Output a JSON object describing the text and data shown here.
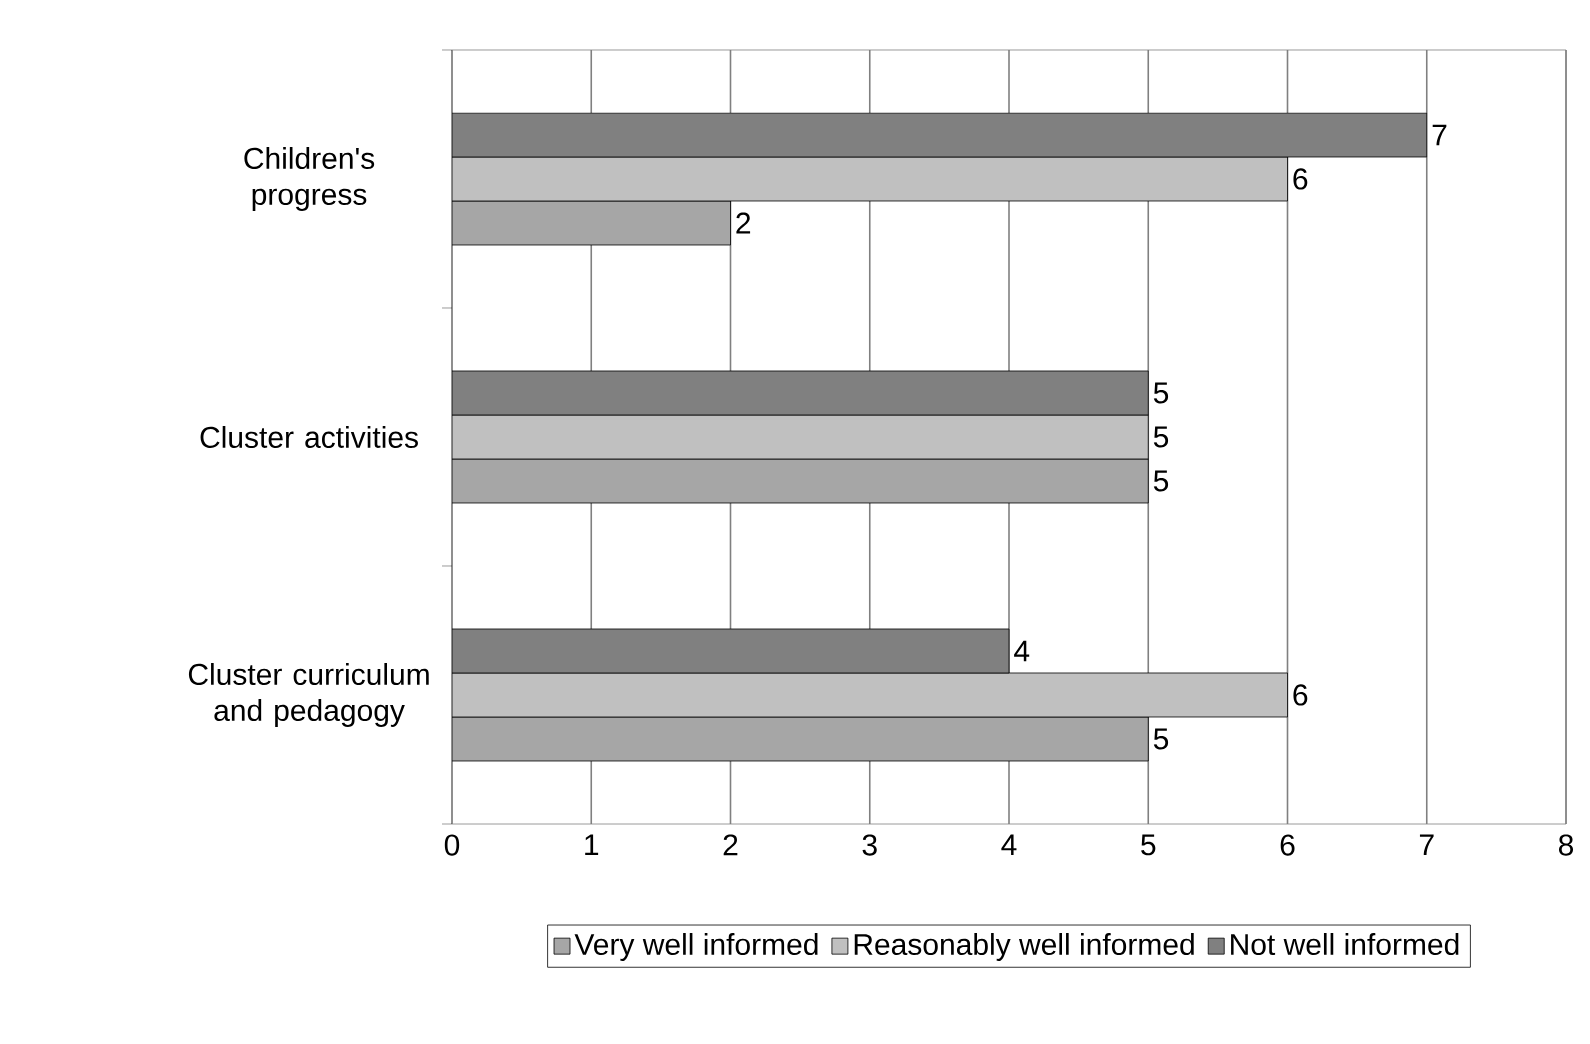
{
  "chart_data": {
    "type": "bar",
    "orientation": "horizontal",
    "categories": [
      "Children's progress",
      "Cluster activities",
      "Cluster curriculum and pedagogy"
    ],
    "series": [
      {
        "name": "Very well informed",
        "color": "#a6a6a6",
        "values": [
          2,
          5,
          5
        ]
      },
      {
        "name": "Reasonably well informed",
        "color": "#c0c0c0",
        "values": [
          6,
          5,
          6
        ]
      },
      {
        "name": "Not well informed",
        "color": "#808080",
        "values": [
          7,
          5,
          4
        ]
      }
    ],
    "xlim": [
      0,
      8
    ],
    "xticks": [
      0,
      1,
      2,
      3,
      4,
      5,
      6,
      7,
      8
    ],
    "grid": "x",
    "legend": "bottom",
    "data_labels": true
  }
}
